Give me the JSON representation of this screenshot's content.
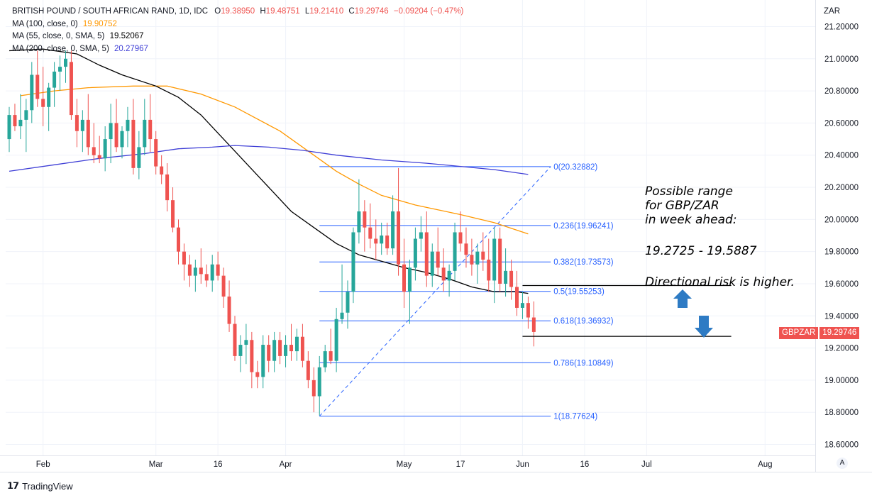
{
  "header": {
    "symbol": "BRITISH POUND / SOUTH AFRICAN RAND, 1D, IDC",
    "ohlc": [
      {
        "label": "O",
        "value": "19.38950"
      },
      {
        "label": "H",
        "value": "19.48751"
      },
      {
        "label": "L",
        "value": "19.21410"
      },
      {
        "label": "C",
        "value": "19.29746"
      }
    ],
    "change": "−0.09204 (−0.47%)"
  },
  "indicators": [
    {
      "label": "MA (100, close, 0)",
      "value": "19.90752",
      "color": "#ff9800"
    },
    {
      "label": "MA (55, close, 0, SMA, 5)",
      "value": "19.52067",
      "color": "#000000"
    },
    {
      "label": "MA (200, close, 0, SMA, 5)",
      "value": "20.27967",
      "color": "#3f3fd6"
    }
  ],
  "currency": "ZAR",
  "price_tag": {
    "symbol": "GBPZAR",
    "value": "19.29746"
  },
  "auto_button": "A",
  "footer": {
    "brand": "TradingView"
  },
  "annotation": {
    "line1": "Possible range",
    "line2": "for GBP/ZAR",
    "line3": "in week ahead:",
    "range": "19.2725 - 19.5887",
    "risk": "Directional risk is higher."
  },
  "colors": {
    "up": "#26a69a",
    "down": "#ef5350",
    "fib": "#2962ff",
    "grid": "#f0f3fa"
  },
  "chart_data": {
    "type": "candlestick",
    "ylim": [
      18.55,
      21.3
    ],
    "y_ticks": [
      "21.20000",
      "21.00000",
      "20.80000",
      "20.60000",
      "20.40000",
      "20.20000",
      "20.00000",
      "19.80000",
      "19.60000",
      "19.40000",
      "19.20000",
      "19.00000",
      "18.80000",
      "18.60000"
    ],
    "x_ticks": [
      {
        "label": "Feb",
        "index": 6
      },
      {
        "label": "Mar",
        "index": 26
      },
      {
        "label": "16",
        "index": 37
      },
      {
        "label": "Apr",
        "index": 49
      },
      {
        "label": "May",
        "index": 70
      },
      {
        "label": "17",
        "index": 80
      },
      {
        "label": "Jun",
        "index": 91
      },
      {
        "label": "16",
        "index": 102
      },
      {
        "label": "Jul",
        "index": 113
      },
      {
        "label": "Aug",
        "index": 134
      }
    ],
    "x_count": 152,
    "candles": [
      [
        20.5,
        20.7,
        20.42,
        20.65
      ],
      [
        20.65,
        20.72,
        20.55,
        20.58
      ],
      [
        20.58,
        20.78,
        20.5,
        20.62
      ],
      [
        20.62,
        20.75,
        20.42,
        20.68
      ],
      [
        20.68,
        20.98,
        20.6,
        20.9
      ],
      [
        20.9,
        21.05,
        20.7,
        20.75
      ],
      [
        20.75,
        20.95,
        20.58,
        20.7
      ],
      [
        20.7,
        20.85,
        20.55,
        20.82
      ],
      [
        20.82,
        20.98,
        20.7,
        20.92
      ],
      [
        20.92,
        21.02,
        20.8,
        20.95
      ],
      [
        20.95,
        21.05,
        20.85,
        21.0
      ],
      [
        20.98,
        21.05,
        20.62,
        20.65
      ],
      [
        20.65,
        20.75,
        20.45,
        20.55
      ],
      [
        20.55,
        20.68,
        20.42,
        20.62
      ],
      [
        20.62,
        20.78,
        20.4,
        20.45
      ],
      [
        20.45,
        20.6,
        20.35,
        20.4
      ],
      [
        20.4,
        20.52,
        20.35,
        20.38
      ],
      [
        20.38,
        20.58,
        20.3,
        20.5
      ],
      [
        20.5,
        20.72,
        20.35,
        20.6
      ],
      [
        20.6,
        20.75,
        20.42,
        20.45
      ],
      [
        20.45,
        20.58,
        20.38,
        20.55
      ],
      [
        20.55,
        20.7,
        20.45,
        20.62
      ],
      [
        20.62,
        20.75,
        20.28,
        20.32
      ],
      [
        20.32,
        20.55,
        20.25,
        20.45
      ],
      [
        20.45,
        20.75,
        20.4,
        20.62
      ],
      [
        20.62,
        20.78,
        20.42,
        20.5
      ],
      [
        20.5,
        20.55,
        20.28,
        20.33
      ],
      [
        20.33,
        20.4,
        20.22,
        20.28
      ],
      [
        20.28,
        20.35,
        20.05,
        20.12
      ],
      [
        20.12,
        20.2,
        19.92,
        19.95
      ],
      [
        19.95,
        20.0,
        19.72,
        19.8
      ],
      [
        19.8,
        19.85,
        19.62,
        19.72
      ],
      [
        19.72,
        19.78,
        19.58,
        19.65
      ],
      [
        19.65,
        19.75,
        19.55,
        19.7
      ],
      [
        19.7,
        19.82,
        19.6,
        19.66
      ],
      [
        19.66,
        19.72,
        19.58,
        19.62
      ],
      [
        19.62,
        19.78,
        19.55,
        19.72
      ],
      [
        19.72,
        19.8,
        19.62,
        19.65
      ],
      [
        19.65,
        19.7,
        19.45,
        19.52
      ],
      [
        19.52,
        19.62,
        19.3,
        19.35
      ],
      [
        19.35,
        19.4,
        19.12,
        19.15
      ],
      [
        19.15,
        19.28,
        19.05,
        19.22
      ],
      [
        19.22,
        19.35,
        19.1,
        19.25
      ],
      [
        19.25,
        19.3,
        18.95,
        19.05
      ],
      [
        19.05,
        19.12,
        18.95,
        19.02
      ],
      [
        19.02,
        19.28,
        18.95,
        19.22
      ],
      [
        19.22,
        19.28,
        19.05,
        19.12
      ],
      [
        19.12,
        19.3,
        19.05,
        19.25
      ],
      [
        19.25,
        19.3,
        19.1,
        19.15
      ],
      [
        19.15,
        19.28,
        19.08,
        19.22
      ],
      [
        19.22,
        19.35,
        19.12,
        19.18
      ],
      [
        19.18,
        19.32,
        19.12,
        19.27
      ],
      [
        19.27,
        19.35,
        19.08,
        19.12
      ],
      [
        19.12,
        19.18,
        18.95,
        19.0
      ],
      [
        19.0,
        19.08,
        18.8,
        18.9
      ],
      [
        18.9,
        19.15,
        18.78,
        19.08
      ],
      [
        19.08,
        19.22,
        19.05,
        19.18
      ],
      [
        19.18,
        19.32,
        19.1,
        19.12
      ],
      [
        19.12,
        19.45,
        19.05,
        19.38
      ],
      [
        19.38,
        19.72,
        19.35,
        19.42
      ],
      [
        19.42,
        19.62,
        19.32,
        19.55
      ],
      [
        19.55,
        19.95,
        19.48,
        19.92
      ],
      [
        19.92,
        20.25,
        19.85,
        20.05
      ],
      [
        20.05,
        20.12,
        19.8,
        19.95
      ],
      [
        19.95,
        20.1,
        19.82,
        19.88
      ],
      [
        19.88,
        20.0,
        19.75,
        19.85
      ],
      [
        19.85,
        19.98,
        19.78,
        19.9
      ],
      [
        19.9,
        19.98,
        19.78,
        19.82
      ],
      [
        19.82,
        20.15,
        19.78,
        20.05
      ],
      [
        20.05,
        20.32,
        19.65,
        19.72
      ],
      [
        19.72,
        19.88,
        19.45,
        19.55
      ],
      [
        19.55,
        19.75,
        19.35,
        19.7
      ],
      [
        19.7,
        19.95,
        19.62,
        19.88
      ],
      [
        19.88,
        20.02,
        19.8,
        19.92
      ],
      [
        19.92,
        20.05,
        19.58,
        19.65
      ],
      [
        19.65,
        19.85,
        19.58,
        19.8
      ],
      [
        19.8,
        19.95,
        19.65,
        19.7
      ],
      [
        19.7,
        19.82,
        19.55,
        19.62
      ],
      [
        19.62,
        19.72,
        19.52,
        19.68
      ],
      [
        19.68,
        19.98,
        19.62,
        19.92
      ],
      [
        19.92,
        20.05,
        19.8,
        19.85
      ],
      [
        19.85,
        19.95,
        19.7,
        19.78
      ],
      [
        19.78,
        19.88,
        19.65,
        19.72
      ],
      [
        19.72,
        19.85,
        19.6,
        19.8
      ],
      [
        19.8,
        19.92,
        19.68,
        19.75
      ],
      [
        19.75,
        19.88,
        19.55,
        19.62
      ],
      [
        19.62,
        19.95,
        19.48,
        19.88
      ],
      [
        19.88,
        19.95,
        19.55,
        19.6
      ],
      [
        19.6,
        19.82,
        19.52,
        19.68
      ],
      [
        19.68,
        19.75,
        19.5,
        19.58
      ],
      [
        19.58,
        19.68,
        19.4,
        19.45
      ],
      [
        19.45,
        19.55,
        19.38,
        19.48
      ],
      [
        19.48,
        19.52,
        19.32,
        19.39
      ],
      [
        19.39,
        19.49,
        19.21,
        19.3
      ]
    ],
    "moving_averages": [
      {
        "name": "MA (100, close, 0)",
        "color": "#ff9800",
        "points": [
          [
            2,
            20.77
          ],
          [
            8,
            20.8
          ],
          [
            14,
            20.82
          ],
          [
            22,
            20.83
          ],
          [
            28,
            20.83
          ],
          [
            34,
            20.78
          ],
          [
            40,
            20.7
          ],
          [
            48,
            20.55
          ],
          [
            54,
            20.4
          ],
          [
            58,
            20.3
          ],
          [
            62,
            20.22
          ],
          [
            66,
            20.15
          ],
          [
            72,
            20.09
          ],
          [
            76,
            20.06
          ],
          [
            80,
            20.03
          ],
          [
            86,
            19.98
          ],
          [
            92,
            19.91
          ]
        ]
      },
      {
        "name": "MA (55, close, 0, SMA, 5)",
        "color": "#000000",
        "points": [
          [
            0,
            21.05
          ],
          [
            6,
            21.06
          ],
          [
            12,
            21.03
          ],
          [
            16,
            20.96
          ],
          [
            20,
            20.9
          ],
          [
            26,
            20.83
          ],
          [
            30,
            20.76
          ],
          [
            34,
            20.65
          ],
          [
            38,
            20.5
          ],
          [
            42,
            20.35
          ],
          [
            46,
            20.2
          ],
          [
            50,
            20.05
          ],
          [
            54,
            19.95
          ],
          [
            58,
            19.85
          ],
          [
            62,
            19.78
          ],
          [
            66,
            19.74
          ],
          [
            70,
            19.7
          ],
          [
            74,
            19.67
          ],
          [
            78,
            19.63
          ],
          [
            82,
            19.58
          ],
          [
            86,
            19.55
          ],
          [
            90,
            19.55
          ],
          [
            92,
            19.54
          ]
        ]
      },
      {
        "name": "MA (200, close, 0, SMA, 5)",
        "color": "#3f3fd6",
        "points": [
          [
            0,
            20.3
          ],
          [
            8,
            20.34
          ],
          [
            16,
            20.38
          ],
          [
            24,
            20.41
          ],
          [
            30,
            20.44
          ],
          [
            36,
            20.45
          ],
          [
            40,
            20.46
          ],
          [
            46,
            20.45
          ],
          [
            52,
            20.43
          ],
          [
            58,
            20.4
          ],
          [
            66,
            20.37
          ],
          [
            74,
            20.35
          ],
          [
            80,
            20.33
          ],
          [
            86,
            20.31
          ],
          [
            92,
            20.28
          ]
        ]
      }
    ],
    "fibonacci": {
      "x_start": 55,
      "x_end": 96,
      "levels": [
        {
          "ratio": "0",
          "price": 20.32882,
          "label": "0(20.32882)"
        },
        {
          "ratio": "0.236",
          "price": 19.96241,
          "label": "0.236(19.96241)"
        },
        {
          "ratio": "0.382",
          "price": 19.73573,
          "label": "0.382(19.73573)"
        },
        {
          "ratio": "0.5",
          "price": 19.55253,
          "label": "0.5(19.55253)"
        },
        {
          "ratio": "0.618",
          "price": 19.36932,
          "label": "0.618(19.36932)"
        },
        {
          "ratio": "0.786",
          "price": 19.10849,
          "label": "0.786(19.10849)"
        },
        {
          "ratio": "1",
          "price": 18.77624,
          "label": "1(18.77624)"
        }
      ]
    },
    "range_lines": [
      {
        "price": 19.5887,
        "x_start": 91,
        "x_end": 128
      },
      {
        "price": 19.2725,
        "x_start": 91,
        "x_end": 128
      }
    ]
  }
}
